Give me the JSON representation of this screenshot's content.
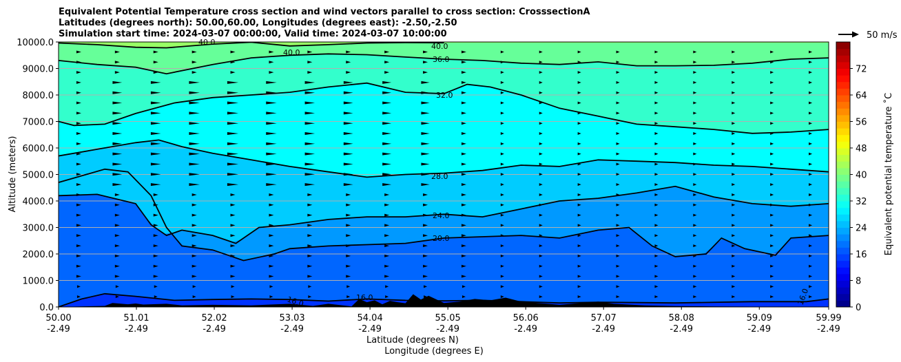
{
  "chart_data": {
    "type": "cross-section",
    "title_lines": [
      "Equivalent Potential Temperature cross section and wind vectors parallel to cross section: CrosssectionA",
      "Latitudes (degrees north): 50.00,60.00, Longitudes (degrees east): -2.50,-2.50",
      "Simulation start time: 2024-03-07 00:00:00, Valid time: 2024-03-07 10:00:00"
    ],
    "xlabel_lat": "Latitude (degrees N)",
    "xlabel_lon": "Longitude (degrees E)",
    "ylabel": "Altitude (meters)",
    "x_range": [
      50.0,
      59.99
    ],
    "x_ticks": [
      {
        "lat": "50.00",
        "lon": "-2.49",
        "value": 50.0
      },
      {
        "lat": "51.01",
        "lon": "-2.49",
        "value": 51.01
      },
      {
        "lat": "52.02",
        "lon": "-2.49",
        "value": 52.02
      },
      {
        "lat": "53.03",
        "lon": "-2.49",
        "value": 53.03
      },
      {
        "lat": "54.04",
        "lon": "-2.49",
        "value": 54.04
      },
      {
        "lat": "55.05",
        "lon": "-2.49",
        "value": 55.05
      },
      {
        "lat": "56.06",
        "lon": "-2.49",
        "value": 56.06
      },
      {
        "lat": "57.07",
        "lon": "-2.49",
        "value": 57.07
      },
      {
        "lat": "58.08",
        "lon": "-2.49",
        "value": 58.08
      },
      {
        "lat": "59.09",
        "lon": "-2.49",
        "value": 59.09
      },
      {
        "lat": "59.99",
        "lon": "-2.49",
        "value": 59.99
      }
    ],
    "y_range": [
      0,
      10000
    ],
    "y_ticks": [
      "0.0",
      "1000.0",
      "2000.0",
      "3000.0",
      "4000.0",
      "5000.0",
      "6000.0",
      "7000.0",
      "8000.0",
      "9000.0",
      "10000.0"
    ],
    "y_tick_values": [
      0,
      1000,
      2000,
      3000,
      4000,
      5000,
      6000,
      7000,
      8000,
      9000,
      10000
    ],
    "grid": "horizontal",
    "colorbar": {
      "label": "Equivalent potential temperature ˚C",
      "range": [
        0,
        80
      ],
      "ticks": [
        "0",
        "8",
        "16",
        "24",
        "32",
        "40",
        "48",
        "56",
        "64",
        "72"
      ],
      "tick_values": [
        0,
        8,
        16,
        24,
        32,
        40,
        48,
        56,
        64,
        72
      ],
      "colormap": "jet"
    },
    "wind_key": {
      "label": "50 m/s",
      "speed": 50
    },
    "contour_labels": [
      "40.0",
      "40.0",
      "36.0",
      "32.0",
      "28.0",
      "24.0",
      "20.0",
      "16.0",
      "16.0",
      "16.0"
    ],
    "contours": [
      {
        "level": 40,
        "points": [
          [
            50.0,
            9960
          ],
          [
            50.5,
            9900
          ],
          [
            51.0,
            9800
          ],
          [
            51.4,
            9780
          ],
          [
            52.0,
            9920
          ],
          [
            52.5,
            9990
          ],
          [
            53.0,
            9850
          ],
          [
            53.5,
            9900
          ],
          [
            54.0,
            9960
          ],
          [
            54.5,
            9980
          ],
          [
            55.0,
            9970
          ]
        ]
      },
      {
        "level": 36,
        "points": [
          [
            50.0,
            9300
          ],
          [
            50.5,
            9150
          ],
          [
            51.0,
            9050
          ],
          [
            51.4,
            8800
          ],
          [
            52.0,
            9150
          ],
          [
            52.5,
            9400
          ],
          [
            53.0,
            9500
          ],
          [
            53.5,
            9550
          ],
          [
            54.0,
            9520
          ],
          [
            54.5,
            9430
          ],
          [
            55.0,
            9350
          ],
          [
            55.5,
            9300
          ],
          [
            56.0,
            9200
          ],
          [
            56.5,
            9150
          ],
          [
            57.0,
            9250
          ],
          [
            57.5,
            9100
          ],
          [
            58.0,
            9100
          ],
          [
            58.5,
            9120
          ],
          [
            59.0,
            9200
          ],
          [
            59.5,
            9350
          ],
          [
            59.99,
            9400
          ]
        ]
      },
      {
        "level": 32,
        "points": [
          [
            50.0,
            7000
          ],
          [
            50.2,
            6850
          ],
          [
            50.6,
            6900
          ],
          [
            51.0,
            7300
          ],
          [
            51.5,
            7700
          ],
          [
            52.0,
            7900
          ],
          [
            52.5,
            8000
          ],
          [
            53.0,
            8100
          ],
          [
            53.5,
            8300
          ],
          [
            54.0,
            8450
          ],
          [
            54.5,
            8100
          ],
          [
            55.0,
            8050
          ],
          [
            55.3,
            8400
          ],
          [
            55.6,
            8300
          ],
          [
            56.0,
            8000
          ],
          [
            56.5,
            7500
          ],
          [
            57.0,
            7200
          ],
          [
            57.5,
            6900
          ],
          [
            58.0,
            6800
          ],
          [
            58.5,
            6700
          ],
          [
            59.0,
            6550
          ],
          [
            59.5,
            6600
          ],
          [
            59.99,
            6700
          ]
        ]
      },
      {
        "level": 28,
        "points": [
          [
            50.0,
            5700
          ],
          [
            50.5,
            5950
          ],
          [
            51.0,
            6200
          ],
          [
            51.3,
            6300
          ],
          [
            51.6,
            6050
          ],
          [
            52.0,
            5800
          ],
          [
            52.5,
            5550
          ],
          [
            53.0,
            5300
          ],
          [
            53.5,
            5100
          ],
          [
            54.0,
            4900
          ],
          [
            54.5,
            5000
          ],
          [
            55.0,
            5050
          ],
          [
            55.5,
            5150
          ],
          [
            56.0,
            5350
          ],
          [
            56.5,
            5300
          ],
          [
            57.0,
            5550
          ],
          [
            57.5,
            5500
          ],
          [
            58.0,
            5450
          ],
          [
            58.5,
            5350
          ],
          [
            59.0,
            5300
          ],
          [
            59.5,
            5200
          ],
          [
            59.99,
            5100
          ]
        ]
      },
      {
        "level": 24,
        "points": [
          [
            50.0,
            4200
          ],
          [
            50.5,
            4250
          ],
          [
            51.0,
            3900
          ],
          [
            51.2,
            3100
          ],
          [
            51.4,
            2700
          ],
          [
            51.6,
            2900
          ],
          [
            52.0,
            2700
          ],
          [
            52.3,
            2400
          ],
          [
            52.6,
            3000
          ],
          [
            53.0,
            3100
          ],
          [
            53.5,
            3300
          ],
          [
            54.0,
            3400
          ],
          [
            54.5,
            3400
          ],
          [
            55.0,
            3500
          ],
          [
            55.5,
            3400
          ],
          [
            56.0,
            3700
          ],
          [
            56.5,
            4000
          ],
          [
            57.0,
            4100
          ],
          [
            57.5,
            4300
          ],
          [
            58.0,
            4550
          ],
          [
            58.5,
            4150
          ],
          [
            59.0,
            3900
          ],
          [
            59.5,
            3800
          ],
          [
            59.99,
            3900
          ]
        ]
      },
      {
        "level": 20,
        "points": [
          [
            50.0,
            4700
          ],
          [
            50.6,
            5200
          ],
          [
            50.9,
            5100
          ],
          [
            51.2,
            4200
          ],
          [
            51.4,
            3000
          ],
          [
            51.6,
            2300
          ],
          [
            52.0,
            2150
          ],
          [
            52.4,
            1750
          ],
          [
            52.8,
            2000
          ],
          [
            53.0,
            2200
          ],
          [
            53.5,
            2300
          ],
          [
            54.0,
            2350
          ],
          [
            54.5,
            2400
          ],
          [
            55.0,
            2600
          ],
          [
            55.5,
            2650
          ],
          [
            56.0,
            2700
          ],
          [
            56.5,
            2600
          ],
          [
            57.0,
            2900
          ],
          [
            57.4,
            3000
          ],
          [
            57.7,
            2300
          ],
          [
            58.0,
            1900
          ],
          [
            58.4,
            2000
          ],
          [
            58.6,
            2600
          ],
          [
            58.9,
            2200
          ],
          [
            59.3,
            1950
          ],
          [
            59.5,
            2600
          ],
          [
            59.99,
            2700
          ]
        ]
      },
      {
        "level": 16,
        "points": [
          [
            50.0,
            0
          ],
          [
            50.3,
            300
          ],
          [
            50.6,
            500
          ],
          [
            51.0,
            400
          ],
          [
            51.5,
            250
          ],
          [
            52.0,
            280
          ],
          [
            52.5,
            300
          ],
          [
            53.0,
            280
          ],
          [
            53.5,
            220
          ],
          [
            54.0,
            300
          ],
          [
            54.5,
            250
          ],
          [
            55.0,
            230
          ],
          [
            55.5,
            250
          ],
          [
            56.0,
            200
          ],
          [
            56.5,
            150
          ],
          [
            57.0,
            180
          ],
          [
            58.0,
            150
          ],
          [
            59.0,
            200
          ],
          [
            59.7,
            200
          ],
          [
            59.99,
            300
          ]
        ]
      }
    ],
    "terrain": [
      [
        50.0,
        0
      ],
      [
        50.6,
        40
      ],
      [
        50.7,
        150
      ],
      [
        50.9,
        100
      ],
      [
        51.0,
        130
      ],
      [
        51.1,
        90
      ],
      [
        51.4,
        120
      ],
      [
        51.6,
        60
      ],
      [
        52.0,
        80
      ],
      [
        52.5,
        60
      ],
      [
        53.0,
        120
      ],
      [
        53.3,
        40
      ],
      [
        53.5,
        120
      ],
      [
        53.8,
        20
      ],
      [
        53.9,
        300
      ],
      [
        54.0,
        180
      ],
      [
        54.1,
        250
      ],
      [
        54.2,
        100
      ],
      [
        54.3,
        230
      ],
      [
        54.4,
        180
      ],
      [
        54.5,
        140
      ],
      [
        54.6,
        480
      ],
      [
        54.7,
        280
      ],
      [
        54.8,
        420
      ],
      [
        55.0,
        150
      ],
      [
        55.2,
        200
      ],
      [
        55.4,
        300
      ],
      [
        55.6,
        250
      ],
      [
        55.8,
        350
      ],
      [
        56.0,
        200
      ],
      [
        56.5,
        80
      ],
      [
        57.0,
        200
      ],
      [
        57.2,
        120
      ],
      [
        57.6,
        60
      ],
      [
        58.0,
        30
      ],
      [
        58.5,
        20
      ],
      [
        59.99,
        0
      ]
    ]
  }
}
